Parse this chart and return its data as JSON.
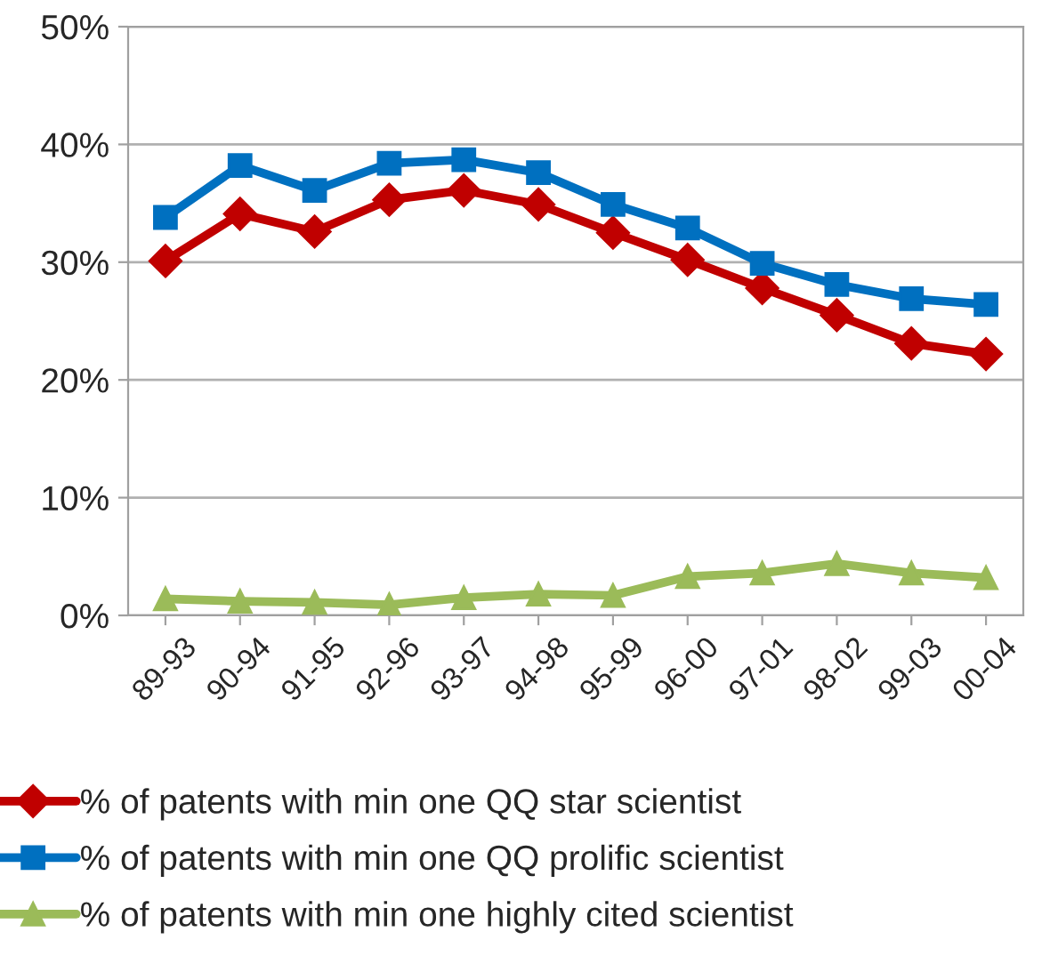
{
  "chart_data": {
    "type": "line",
    "categories": [
      "89-93",
      "90-94",
      "91-95",
      "92-96",
      "93-97",
      "94-98",
      "95-99",
      "96-00",
      "97-01",
      "98-02",
      "99-03",
      "00-04"
    ],
    "series": [
      {
        "name": "% of patents with min one QQ star scientist",
        "color": "#c00000",
        "marker": "diamond",
        "values": [
          30.1,
          34.1,
          32.6,
          35.3,
          36.1,
          34.9,
          32.5,
          30.2,
          27.8,
          25.5,
          23.1,
          22.2
        ]
      },
      {
        "name": "% of patents with min one QQ prolific scientist",
        "color": "#0070c0",
        "marker": "square",
        "values": [
          33.8,
          38.2,
          36.1,
          38.4,
          38.7,
          37.6,
          34.9,
          32.9,
          29.9,
          28.1,
          26.9,
          26.4
        ]
      },
      {
        "name": "% of patents with min one highly cited scientist",
        "color": "#9bbb59",
        "marker": "triangle",
        "values": [
          1.4,
          1.2,
          1.1,
          0.9,
          1.5,
          1.8,
          1.7,
          3.3,
          3.6,
          4.4,
          3.6,
          3.2
        ]
      }
    ],
    "ylim": [
      0,
      50
    ],
    "yticks": [
      {
        "value": 0,
        "label": "0%"
      },
      {
        "value": 10,
        "label": "10%"
      },
      {
        "value": 20,
        "label": "20%"
      },
      {
        "value": 30,
        "label": "30%"
      },
      {
        "value": 40,
        "label": "40%"
      },
      {
        "value": 50,
        "label": "50%"
      }
    ],
    "grid": "y",
    "legend": "bottom",
    "line_style": "solid"
  }
}
